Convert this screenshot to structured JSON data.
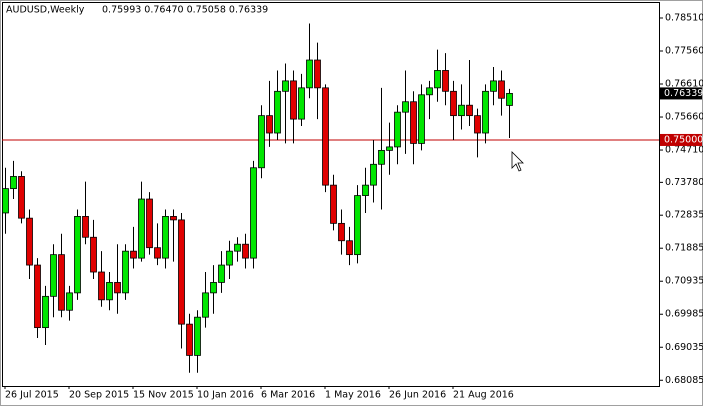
{
  "chart_data": {
    "type": "candlestick",
    "title": "AUDUSD,Weekly",
    "ohlc_text": "0.75993 0.76470 0.75058 0.76339",
    "categories": [
      "26 Jul 2015",
      null,
      null,
      null,
      null,
      null,
      null,
      null,
      "20 Sep 2015",
      null,
      null,
      null,
      null,
      null,
      null,
      null,
      "15 Nov 2015",
      null,
      null,
      null,
      null,
      null,
      null,
      null,
      "10 Jan 2016",
      null,
      null,
      null,
      null,
      null,
      null,
      null,
      "6 Mar 2016",
      null,
      null,
      null,
      null,
      null,
      null,
      null,
      "1 May 2016",
      null,
      null,
      null,
      null,
      null,
      null,
      null,
      "26 Jun 2016",
      null,
      null,
      null,
      null,
      null,
      null,
      null,
      "21 Aug 2016",
      null,
      null,
      null,
      null,
      null,
      null,
      null
    ],
    "open": [
      0.729,
      0.736,
      0.7395,
      0.7275,
      0.714,
      0.696,
      0.705,
      0.717,
      0.701,
      0.706,
      0.728,
      0.722,
      0.712,
      0.704,
      0.709,
      0.706,
      0.718,
      0.716,
      0.733,
      0.719,
      0.716,
      0.728,
      0.727,
      0.697,
      0.688,
      0.699,
      0.706,
      0.709,
      0.714,
      0.718,
      0.72,
      0.716,
      0.742,
      0.757,
      0.752,
      0.764,
      0.767,
      0.756,
      0.765,
      0.773,
      0.765,
      0.737,
      0.726,
      0.721,
      0.717,
      0.734,
      0.737,
      0.743,
      0.747,
      0.748,
      0.758,
      0.761,
      0.749,
      0.763,
      0.765,
      0.77,
      0.764,
      0.757,
      0.76,
      0.757,
      0.752,
      0.764,
      0.767,
      0.75993
    ],
    "high": [
      0.742,
      0.744,
      0.741,
      0.73,
      0.716,
      0.708,
      0.72,
      0.723,
      0.708,
      0.73,
      0.738,
      0.727,
      0.718,
      0.712,
      0.72,
      0.72,
      0.725,
      0.738,
      0.735,
      0.726,
      0.73,
      0.73,
      0.729,
      0.7,
      0.701,
      0.712,
      0.714,
      0.718,
      0.721,
      0.722,
      0.723,
      0.744,
      0.76,
      0.767,
      0.77,
      0.772,
      0.77,
      0.769,
      0.7835,
      0.778,
      0.766,
      0.74,
      0.73,
      0.725,
      0.737,
      0.742,
      0.75,
      0.765,
      0.755,
      0.76,
      0.77,
      0.764,
      0.766,
      0.767,
      0.776,
      0.775,
      0.767,
      0.766,
      0.773,
      0.759,
      0.766,
      0.771,
      0.77,
      0.7647
    ],
    "low": [
      0.723,
      0.733,
      0.726,
      0.71,
      0.693,
      0.691,
      0.699,
      0.699,
      0.698,
      0.704,
      0.72,
      0.71,
      0.702,
      0.701,
      0.7,
      0.704,
      0.713,
      0.715,
      0.717,
      0.714,
      0.713,
      0.715,
      0.69,
      0.683,
      0.683,
      0.696,
      0.7,
      0.706,
      0.71,
      0.715,
      0.713,
      0.713,
      0.739,
      0.748,
      0.75,
      0.749,
      0.749,
      0.754,
      0.762,
      0.756,
      0.735,
      0.724,
      0.717,
      0.714,
      0.7145,
      0.729,
      0.732,
      0.73,
      0.74,
      0.743,
      0.746,
      0.743,
      0.747,
      0.756,
      0.761,
      0.76,
      0.75,
      0.753,
      0.754,
      0.745,
      0.749,
      0.76,
      0.757,
      0.75058
    ],
    "close": [
      0.736,
      0.7395,
      0.7275,
      0.714,
      0.696,
      0.705,
      0.717,
      0.701,
      0.706,
      0.728,
      0.722,
      0.712,
      0.704,
      0.709,
      0.706,
      0.718,
      0.716,
      0.733,
      0.719,
      0.716,
      0.728,
      0.727,
      0.697,
      0.688,
      0.699,
      0.706,
      0.709,
      0.714,
      0.718,
      0.72,
      0.716,
      0.742,
      0.757,
      0.752,
      0.764,
      0.767,
      0.756,
      0.765,
      0.773,
      0.765,
      0.737,
      0.726,
      0.721,
      0.717,
      0.734,
      0.737,
      0.743,
      0.747,
      0.748,
      0.758,
      0.761,
      0.749,
      0.763,
      0.765,
      0.77,
      0.764,
      0.757,
      0.76,
      0.757,
      0.752,
      0.764,
      0.767,
      0.762,
      0.76339
    ],
    "up_color": "#00e600",
    "down_color": "#e00000",
    "hline": {
      "value": 0.75,
      "label": "0.75000",
      "color": "#c00000"
    },
    "ylim": [
      0.6792,
      0.7897
    ],
    "yticks": [
      {
        "value": 0.7851,
        "label": "0.78510"
      },
      {
        "value": 0.7756,
        "label": "0.77560"
      },
      {
        "value": 0.7661,
        "label": "0.76610"
      },
      {
        "value": 0.7566,
        "label": "0.75660"
      },
      {
        "value": 0.7471,
        "label": "0.74710"
      },
      {
        "value": 0.7378,
        "label": "0.73780"
      },
      0.72835,
      0.71885,
      0.70935,
      0.69985,
      0.69035,
      0.68085
    ],
    "grid": false
  }
}
